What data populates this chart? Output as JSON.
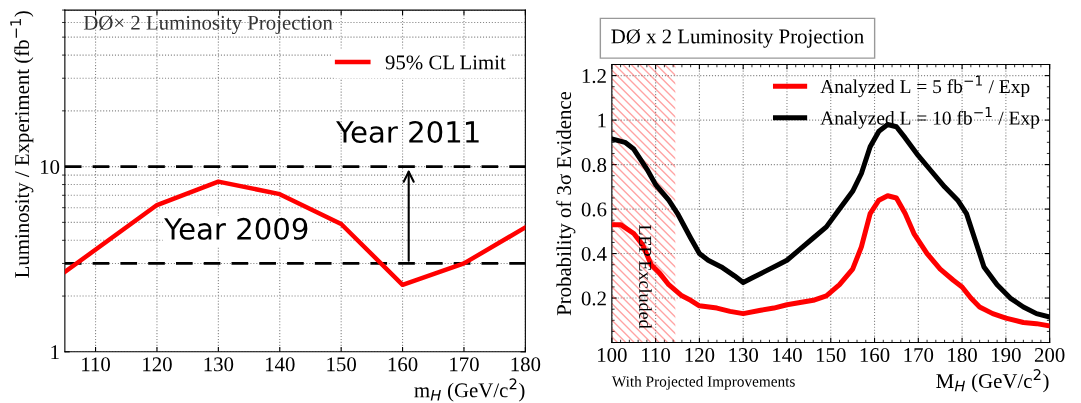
{
  "chart_data": [
    {
      "type": "line",
      "title": "DØ× 2 Luminosity Projection",
      "xlabel": "m$_{H}$ (GeV/c$^{2}$)",
      "ylabel": "Luminosity / Experiment (fb$^{−1}$)",
      "x": [
        105,
        120,
        130,
        140,
        150,
        160,
        170,
        180
      ],
      "series": [
        {
          "name": "95% CL Limit",
          "color": "#ff0000",
          "values": [
            2.7,
            6.2,
            8.3,
            7.1,
            4.9,
            2.3,
            3.0,
            4.7
          ]
        }
      ],
      "log": "y",
      "xlim": [
        105,
        180
      ],
      "xticks": [
        110,
        120,
        130,
        140,
        150,
        160,
        170,
        180
      ],
      "ylim": [
        1,
        70
      ],
      "yticks": [
        1,
        10
      ],
      "grid": true,
      "legend": "top right",
      "line_style": "solid",
      "marker": "none",
      "ref_lines": [
        {
          "axis": "y",
          "value": 10,
          "color": "#000000",
          "line_style": "dashed"
        },
        {
          "axis": "y",
          "value": 3,
          "color": "#000000",
          "line_style": "dashed"
        }
      ],
      "annotations": [
        {
          "text": "Year 2011",
          "x": 161,
          "y": 10
        },
        {
          "text": "Year 2009",
          "x": 133,
          "y": 3
        }
      ]
    },
    {
      "type": "line",
      "title": "DØ x 2 Luminosity Projection",
      "xlabel": "M$_{H}$ (GeV/c$^{2}$)",
      "ylabel": "Probability of 3σ Evidence",
      "series": [
        {
          "name": "Analyzed L = 5 fb$^{−1}$ / Exp",
          "color": "#ff0000",
          "x": [
            100,
            102,
            105,
            107,
            109,
            111,
            113,
            116,
            118,
            120,
            124,
            127,
            130,
            134,
            137,
            140,
            143,
            146,
            149,
            152,
            155,
            157,
            159,
            161,
            163,
            165,
            167,
            169,
            172,
            175,
            178,
            180,
            182,
            184,
            187,
            190,
            194,
            197,
            200
          ],
          "values": [
            0.53,
            0.53,
            0.49,
            0.44,
            0.35,
            0.31,
            0.26,
            0.21,
            0.19,
            0.165,
            0.155,
            0.14,
            0.13,
            0.145,
            0.155,
            0.17,
            0.18,
            0.19,
            0.21,
            0.26,
            0.33,
            0.43,
            0.58,
            0.64,
            0.66,
            0.65,
            0.58,
            0.49,
            0.4,
            0.33,
            0.28,
            0.25,
            0.2,
            0.16,
            0.13,
            0.11,
            0.09,
            0.085,
            0.075
          ]
        },
        {
          "name": "Analyzed L = 10 fb$^{−1}$ / Exp",
          "color": "#000000",
          "x": [
            100,
            103,
            105,
            108,
            110,
            113,
            115,
            118,
            120,
            122,
            125,
            128,
            130,
            132,
            135,
            138,
            140,
            143,
            146,
            149,
            152,
            155,
            157,
            159,
            161,
            163,
            165,
            167,
            170,
            173,
            176,
            179,
            181,
            183,
            185,
            188,
            191,
            194,
            197,
            200
          ],
          "values": [
            0.915,
            0.9,
            0.87,
            0.78,
            0.71,
            0.64,
            0.58,
            0.47,
            0.4,
            0.37,
            0.34,
            0.3,
            0.27,
            0.29,
            0.32,
            0.35,
            0.37,
            0.42,
            0.47,
            0.52,
            0.6,
            0.68,
            0.76,
            0.88,
            0.95,
            0.98,
            0.97,
            0.92,
            0.84,
            0.77,
            0.7,
            0.64,
            0.58,
            0.46,
            0.34,
            0.26,
            0.2,
            0.16,
            0.13,
            0.115
          ]
        }
      ],
      "xlim": [
        100,
        200
      ],
      "xticks": [
        100,
        110,
        120,
        130,
        140,
        150,
        160,
        170,
        180,
        190,
        200
      ],
      "ylim": [
        0,
        1.25
      ],
      "yticks": [
        0.2,
        0.4,
        0.6,
        0.8,
        1,
        1.2
      ],
      "grid": true,
      "legend": "top right",
      "line_style": "solid",
      "marker": "none",
      "bands": [
        {
          "axis": "x",
          "from": 100,
          "to": 114.5,
          "label": "LEP Excluded",
          "color": "#ff0000"
        }
      ],
      "annotations": [
        "With Projected Improvements"
      ]
    }
  ]
}
